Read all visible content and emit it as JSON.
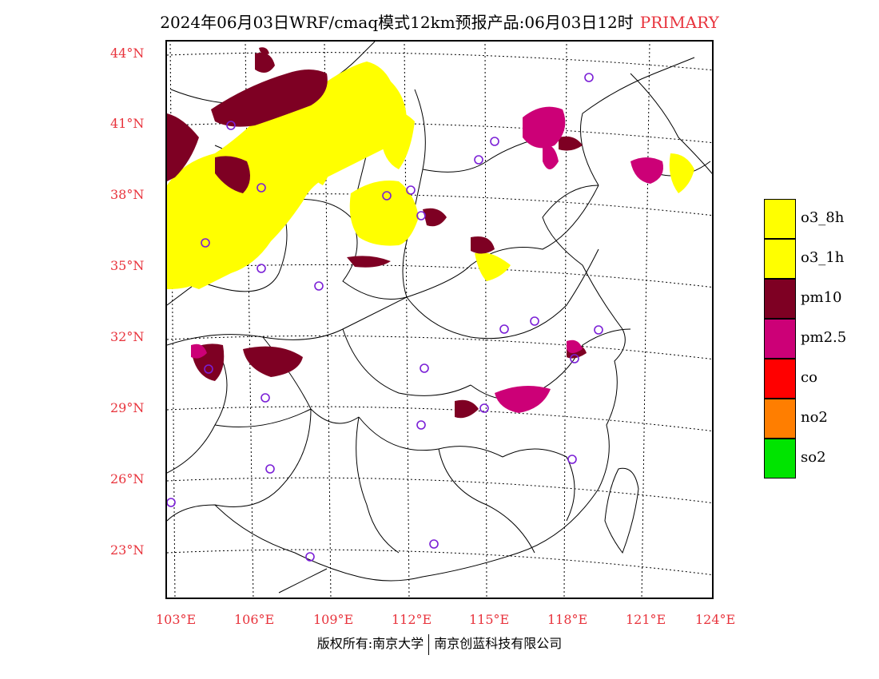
{
  "title": "2024年06月03日WRF/cmaq模式12km预报产品:06月03日12时",
  "title_tag": "PRIMARY",
  "lat_labels": [
    "44°N",
    "41°N",
    "38°N",
    "35°N",
    "32°N",
    "29°N",
    "26°N",
    "23°N"
  ],
  "lon_labels": [
    "103°E",
    "106°E",
    "109°E",
    "112°E",
    "115°E",
    "118°E",
    "121°E",
    "124°E"
  ],
  "legend": [
    {
      "label": "o3_8h",
      "color": "#ffff00"
    },
    {
      "label": "o3_1h",
      "color": "#ffff00"
    },
    {
      "label": "pm10",
      "color": "#7e0023"
    },
    {
      "label": "pm2.5",
      "color": "#cc0077"
    },
    {
      "label": "co",
      "color": "#ff0000"
    },
    {
      "label": "no2",
      "color": "#ff7e00"
    },
    {
      "label": "so2",
      "color": "#00e400"
    }
  ],
  "footer_left": "版权所有:南京大学",
  "footer_right": "南京创蓝科技有限公司"
}
